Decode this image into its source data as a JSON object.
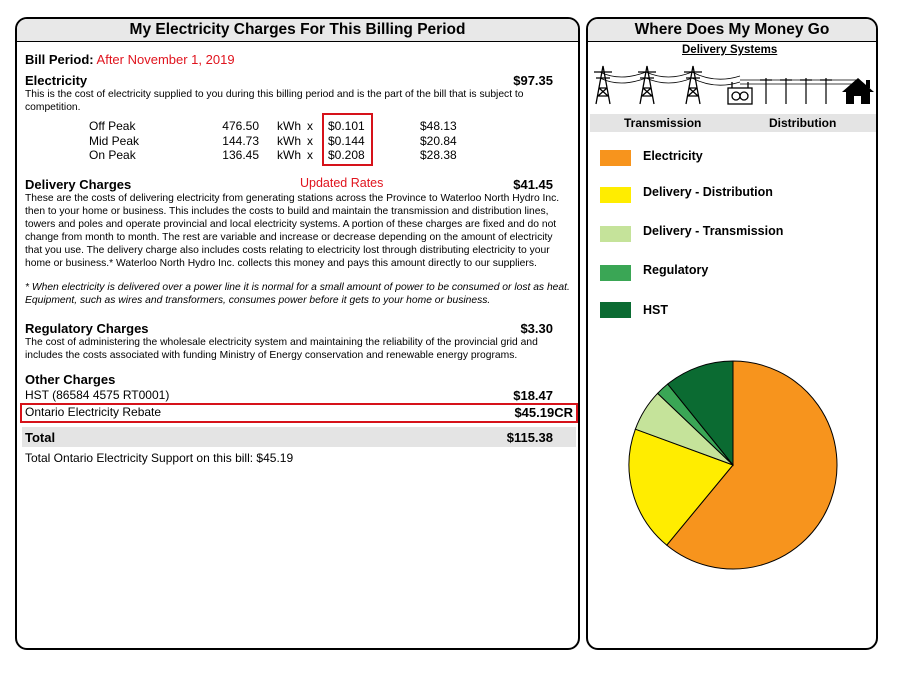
{
  "left_panel": {
    "title": "My Electricity Charges For This Billing Period",
    "bill_period_label": "Bill Period:",
    "bill_period_value": "After November 1, 2019",
    "electricity": {
      "heading": "Electricity",
      "amount": "$97.35",
      "description": "This is the cost of electricity supplied to you during this billing period and is the part of the bill that is subject to competition.",
      "rows": [
        {
          "period": "Off Peak",
          "qty": "476.50",
          "unit": "kWh",
          "x": "x",
          "rate": "$0.101",
          "total": "$48.13"
        },
        {
          "period": "Mid Peak",
          "qty": "144.73",
          "unit": "kWh",
          "x": "x",
          "rate": "$0.144",
          "total": "$20.84"
        },
        {
          "period": "On Peak",
          "qty": "136.45",
          "unit": "kWh",
          "x": "x",
          "rate": "$0.208",
          "total": "$28.38"
        }
      ]
    },
    "delivery": {
      "heading": "Delivery Charges",
      "note": "Updated Rates",
      "amount": "$41.45",
      "description": "These are the costs of delivering electricity from generating stations across the Province to Waterloo North Hydro Inc. then to your home or business. This includes the costs to build and maintain the transmission and distribution lines, towers and poles and operate provincial and local electricity systems. A portion of these charges are fixed and do not change from month to month. The rest are variable and increase or decrease depending on the amount of electricity that you use. The delivery charge also includes costs relating to electricity lost through distributing electricity to your home or business.* Waterloo North Hydro Inc. collects this money and pays this amount directly to our suppliers.",
      "footnote": "* When electricity is delivered over a power line it is normal for a small amount of power to be consumed or lost as heat. Equipment, such as wires and transformers, consumes power before it gets to your home or business."
    },
    "regulatory": {
      "heading": "Regulatory Charges",
      "amount": "$3.30",
      "description": "The cost of administering the wholesale electricity system and maintaining the reliability of the provincial grid and includes the costs associated with funding Ministry of Energy conservation and renewable energy programs."
    },
    "other": {
      "heading": "Other Charges",
      "hst_label": "HST (86584 4575 RT0001)",
      "hst_amount": "$18.47",
      "rebate_label": "Ontario Electricity Rebate",
      "rebate_amount": "$45.19CR"
    },
    "total_label": "Total",
    "total_amount": "$115.38",
    "support_text": "Total Ontario Electricity Support on this bill: $45.19"
  },
  "right_panel": {
    "title": "Where Does My Money Go",
    "delivery_systems_label": "Delivery Systems",
    "transmission_label": "Transmission",
    "distribution_label": "Distribution",
    "legend": [
      {
        "label": "Electricity",
        "color": "#f7941d"
      },
      {
        "label": "Delivery - Distribution",
        "color": "#ffed00"
      },
      {
        "label": "Delivery - Transmission",
        "color": "#c5e39a"
      },
      {
        "label": "Regulatory",
        "color": "#3aa655"
      },
      {
        "label": "HST",
        "color": "#0b6b32"
      }
    ]
  },
  "chart_data": {
    "type": "pie",
    "categories": [
      "Electricity",
      "Delivery - Distribution",
      "Delivery - Transmission",
      "Regulatory",
      "HST"
    ],
    "values": [
      61.0,
      19.6,
      6.5,
      2.1,
      10.8
    ],
    "colors": [
      "#f7941d",
      "#ffed00",
      "#c5e39a",
      "#3aa655",
      "#0b6b32"
    ]
  }
}
